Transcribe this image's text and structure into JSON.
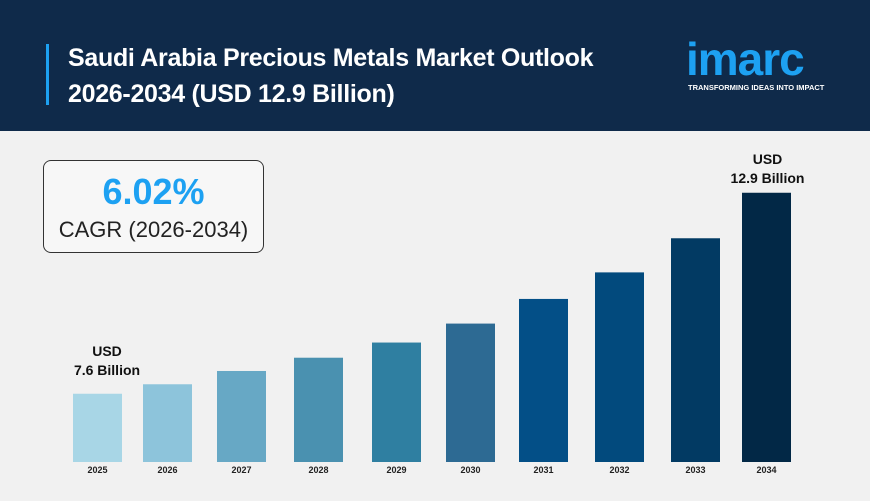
{
  "header": {
    "title_line1": "Saudi Arabia Precious Metals Market Outlook",
    "title_line2": "2026-2034 (USD 12.9 Billion)"
  },
  "logo": {
    "name": "imarc",
    "tagline": "TRANSFORMING IDEAS INTO IMPACT"
  },
  "cagr": {
    "value": "6.02%",
    "label": "CAGR (2026-2034)"
  },
  "chart_data": {
    "type": "bar",
    "categories": [
      "2025",
      "2026",
      "2027",
      "2028",
      "2029",
      "2030",
      "2031",
      "2032",
      "2033",
      "2034"
    ],
    "values": [
      7.6,
      7.85,
      8.2,
      8.55,
      8.95,
      9.45,
      10.1,
      10.8,
      11.7,
      12.9
    ],
    "ylim": [
      5.8,
      13.5
    ],
    "grid": false,
    "colors": [
      "#a8d6e6",
      "#8dc4db",
      "#67a8c5",
      "#4a91b0",
      "#2f7fa1",
      "#2d6a93",
      "#034f87",
      "#024a7d",
      "#023a63",
      "#022846"
    ],
    "annotations": [
      {
        "category": "2025",
        "line1": "USD",
        "line2": "7.6 Billion"
      },
      {
        "category": "2034",
        "line1": "USD",
        "line2": "12.9 Billion"
      }
    ]
  }
}
